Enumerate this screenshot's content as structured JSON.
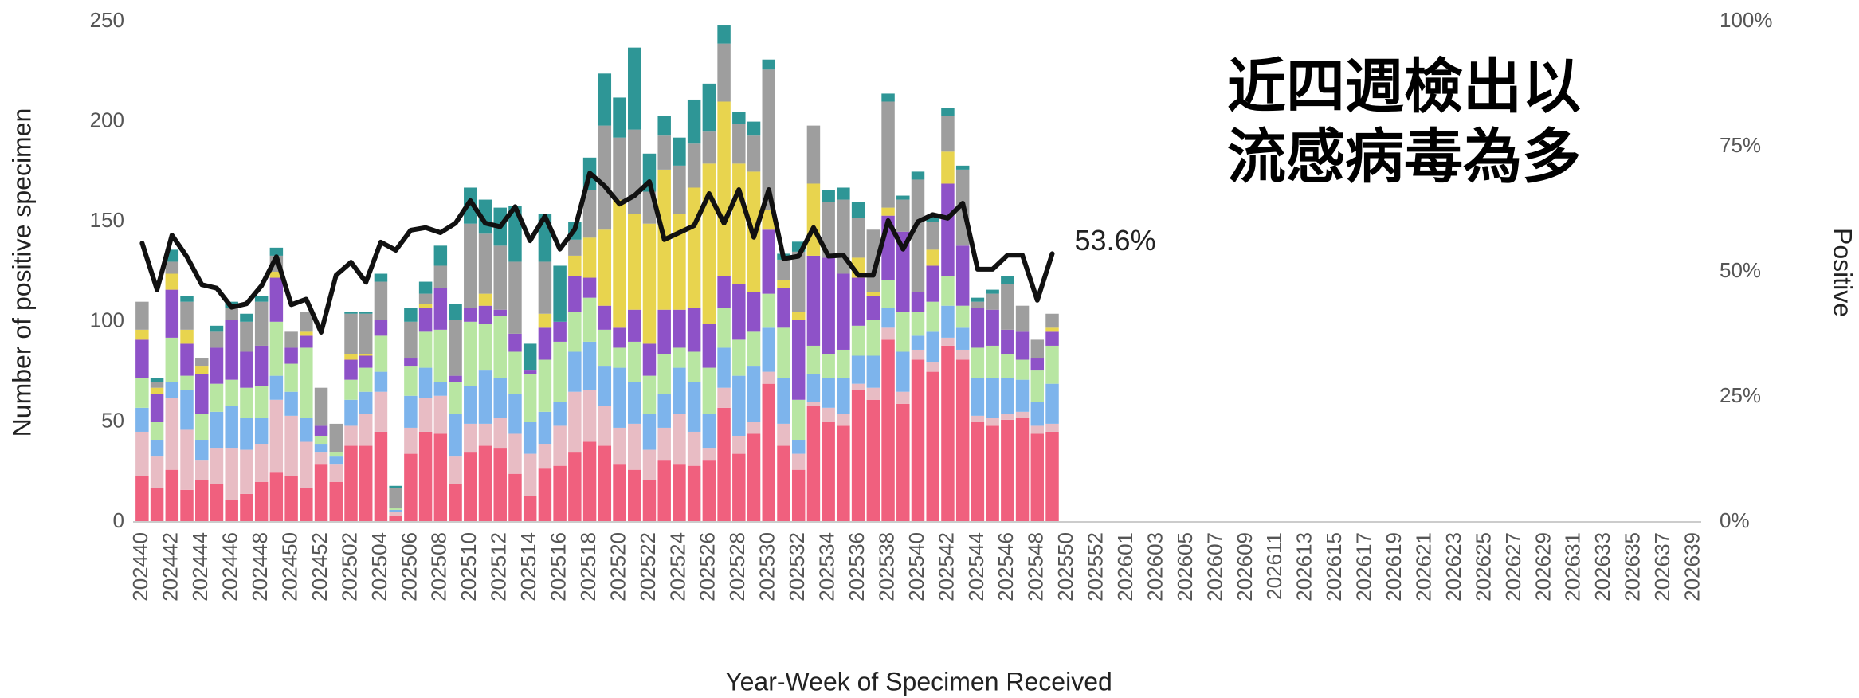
{
  "chart_data": {
    "type": "bar",
    "x_label": "Year-Week of Specimen Received",
    "y_label": "Number of positive specimen",
    "y2_label": "Positive",
    "annotations": [
      "近四週檢出以",
      "流感病毒為多"
    ],
    "categories": [
      "202440",
      null,
      "202442",
      null,
      "202444",
      null,
      "202446",
      null,
      "202448",
      null,
      "202450",
      null,
      "202452",
      null,
      "202502",
      null,
      "202504",
      null,
      "202506",
      null,
      "202508",
      null,
      "202510",
      null,
      "202512",
      null,
      "202514",
      null,
      "202516",
      null,
      "202518",
      null,
      "202520",
      null,
      "202522",
      null,
      "202524",
      null,
      "202526",
      null,
      "202528",
      null,
      "202530",
      null,
      "202532",
      null,
      "202534",
      null,
      "202536",
      null,
      "202538",
      null,
      "202540",
      null,
      "202542",
      null,
      "202544",
      null,
      "202546",
      null,
      "202548",
      null,
      "202550",
      null,
      "202552",
      null,
      "202601",
      null,
      "202603",
      null,
      "202605",
      null,
      "202607",
      null,
      "202609",
      null,
      "202611",
      null,
      "202613",
      null,
      "202615",
      null,
      "202617",
      null,
      "202619",
      null,
      "202621",
      null,
      "202623",
      null,
      "202625",
      null,
      "202627",
      null,
      "202629",
      null,
      "202631",
      null,
      "202633",
      null,
      "202635",
      null,
      "202637",
      null,
      "202639"
    ],
    "ylim": [
      0,
      250
    ],
    "yticks": [
      0,
      50,
      100,
      150,
      200,
      250
    ],
    "y2lim": [
      0,
      100
    ],
    "y2ticks": [
      {
        "value": 0,
        "label": "0%"
      },
      {
        "value": 25,
        "label": "25%"
      },
      {
        "value": 50,
        "label": "50%"
      },
      {
        "value": 75,
        "label": "75%"
      },
      {
        "value": 100,
        "label": "100%"
      }
    ],
    "grid": false,
    "series": [
      {
        "color": "#f0607e",
        "values": [
          23,
          17,
          26,
          16,
          21,
          19,
          11,
          14,
          20,
          25,
          23,
          17,
          29,
          20,
          38,
          38,
          45,
          3,
          34,
          45,
          44,
          19,
          35,
          38,
          37,
          24,
          13,
          27,
          28,
          35,
          40,
          38,
          29,
          26,
          21,
          31,
          29,
          28,
          31,
          57,
          34,
          44,
          69,
          38,
          26,
          58,
          50,
          48,
          66,
          61,
          91,
          59,
          81,
          75,
          88,
          81,
          50,
          48,
          51,
          52,
          44,
          45,
          null,
          null,
          null,
          null,
          null,
          null,
          null,
          null,
          null,
          null,
          null,
          null,
          null,
          null,
          null,
          null,
          null,
          null,
          null,
          null,
          null,
          null,
          null,
          null,
          null,
          null,
          null,
          null,
          null,
          null,
          null,
          null,
          null,
          null,
          null,
          null,
          null,
          null,
          null,
          null,
          null,
          null,
          null
        ]
      },
      {
        "color": "#e8bcc4",
        "values": [
          22,
          16,
          36,
          30,
          10,
          18,
          26,
          22,
          19,
          36,
          30,
          23,
          6,
          9,
          10,
          16,
          20,
          2,
          13,
          17,
          19,
          14,
          14,
          11,
          15,
          20,
          21,
          12,
          20,
          30,
          26,
          20,
          18,
          23,
          15,
          16,
          25,
          17,
          6,
          10,
          9,
          6,
          6,
          11,
          8,
          2,
          7,
          6,
          3,
          6,
          6,
          6,
          5,
          5,
          4,
          5,
          3,
          4,
          3,
          3,
          4,
          4,
          null,
          null,
          null,
          null,
          null,
          null,
          null,
          null,
          null,
          null,
          null,
          null,
          null,
          null,
          null,
          null,
          null,
          null,
          null,
          null,
          null,
          null,
          null,
          null,
          null,
          null,
          null,
          null,
          null,
          null,
          null,
          null,
          null,
          null,
          null,
          null,
          null,
          null,
          null,
          null,
          null,
          null,
          null
        ]
      },
      {
        "color": "#7db4ec",
        "values": [
          12,
          8,
          8,
          20,
          10,
          18,
          21,
          16,
          13,
          12,
          12,
          12,
          4,
          4,
          13,
          11,
          10,
          1,
          16,
          15,
          7,
          21,
          19,
          27,
          20,
          20,
          16,
          16,
          12,
          20,
          24,
          20,
          30,
          21,
          18,
          17,
          23,
          25,
          17,
          20,
          30,
          28,
          22,
          23,
          7,
          14,
          15,
          18,
          14,
          16,
          10,
          20,
          7,
          15,
          16,
          11,
          19,
          20,
          18,
          16,
          12,
          20,
          null,
          null,
          null,
          null,
          null,
          null,
          null,
          null,
          null,
          null,
          null,
          null,
          null,
          null,
          null,
          null,
          null,
          null,
          null,
          null,
          null,
          null,
          null,
          null,
          null,
          null,
          null,
          null,
          null,
          null,
          null,
          null,
          null,
          null,
          null,
          null,
          null,
          null,
          null,
          null,
          null,
          null,
          null
        ]
      },
      {
        "color": "#b8e6a2",
        "values": [
          15,
          9,
          22,
          7,
          13,
          14,
          13,
          15,
          16,
          27,
          14,
          35,
          4,
          2,
          10,
          12,
          18,
          1,
          15,
          18,
          26,
          16,
          32,
          23,
          31,
          21,
          24,
          26,
          30,
          20,
          22,
          18,
          10,
          20,
          19,
          20,
          10,
          15,
          23,
          20,
          18,
          17,
          17,
          25,
          20,
          14,
          12,
          14,
          15,
          18,
          14,
          20,
          12,
          15,
          15,
          11,
          15,
          16,
          12,
          10,
          16,
          19,
          null,
          null,
          null,
          null,
          null,
          null,
          null,
          null,
          null,
          null,
          null,
          null,
          null,
          null,
          null,
          null,
          null,
          null,
          null,
          null,
          null,
          null,
          null,
          null,
          null,
          null,
          null,
          null,
          null,
          null,
          null,
          null,
          null,
          null,
          null,
          null,
          null,
          null,
          null,
          null,
          null,
          null,
          null
        ]
      },
      {
        "color": "#8e52c8",
        "values": [
          19,
          14,
          24,
          16,
          20,
          18,
          30,
          18,
          20,
          22,
          8,
          6,
          5,
          0,
          10,
          6,
          8,
          0,
          4,
          12,
          21,
          3,
          7,
          9,
          3,
          9,
          2,
          16,
          10,
          18,
          10,
          12,
          10,
          16,
          16,
          22,
          19,
          22,
          22,
          16,
          28,
          20,
          32,
          20,
          40,
          45,
          48,
          38,
          24,
          12,
          32,
          40,
          10,
          18,
          46,
          30,
          20,
          18,
          12,
          14,
          6,
          7,
          null,
          null,
          null,
          null,
          null,
          null,
          null,
          null,
          null,
          null,
          null,
          null,
          null,
          null,
          null,
          null,
          null,
          null,
          null,
          null,
          null,
          null,
          null,
          null,
          null,
          null,
          null,
          null,
          null,
          null,
          null,
          null,
          null,
          null,
          null,
          null,
          null,
          null,
          null,
          null,
          null,
          null,
          null
        ]
      },
      {
        "color": "#e8d44e",
        "values": [
          5,
          3,
          8,
          7,
          4,
          0,
          0,
          0,
          0,
          3,
          0,
          2,
          0,
          0,
          3,
          1,
          0,
          0,
          0,
          2,
          0,
          0,
          0,
          6,
          0,
          0,
          0,
          7,
          0,
          10,
          20,
          38,
          64,
          48,
          60,
          70,
          48,
          60,
          80,
          87,
          60,
          60,
          10,
          4,
          4,
          36,
          0,
          0,
          10,
          2,
          4,
          0,
          0,
          8,
          16,
          0,
          0,
          0,
          0,
          0,
          0,
          2,
          null,
          null,
          null,
          null,
          null,
          null,
          null,
          null,
          null,
          null,
          null,
          null,
          null,
          null,
          null,
          null,
          null,
          null,
          null,
          null,
          null,
          null,
          null,
          null,
          null,
          null,
          null,
          null,
          null,
          null,
          null,
          null,
          null,
          null,
          null,
          null,
          null,
          null,
          null,
          null,
          null,
          null,
          null
        ]
      },
      {
        "color": "#9e9e9e",
        "values": [
          14,
          3,
          6,
          14,
          4,
          8,
          6,
          15,
          22,
          8,
          8,
          10,
          19,
          14,
          20,
          20,
          19,
          10,
          18,
          5,
          11,
          28,
          42,
          30,
          32,
          36,
          0,
          26,
          0,
          8,
          24,
          52,
          31,
          42,
          16,
          17,
          24,
          22,
          16,
          29,
          20,
          18,
          70,
          10,
          30,
          29,
          28,
          37,
          20,
          31,
          53,
          16,
          56,
          14,
          18,
          38,
          3,
          8,
          23,
          13,
          9,
          7,
          null,
          null,
          null,
          null,
          null,
          null,
          null,
          null,
          null,
          null,
          null,
          null,
          null,
          null,
          null,
          null,
          null,
          null,
          null,
          null,
          null,
          null,
          null,
          null,
          null,
          null,
          null,
          null,
          null,
          null,
          null,
          null,
          null,
          null,
          null,
          null,
          null,
          null,
          null,
          null,
          null,
          null,
          null
        ]
      },
      {
        "color": "#2e9696",
        "values": [
          0,
          2,
          6,
          3,
          0,
          3,
          3,
          4,
          3,
          4,
          0,
          0,
          0,
          0,
          1,
          1,
          4,
          1,
          7,
          6,
          10,
          8,
          18,
          17,
          19,
          28,
          13,
          24,
          28,
          9,
          16,
          26,
          20,
          41,
          19,
          10,
          14,
          22,
          24,
          9,
          6,
          7,
          5,
          3,
          5,
          0,
          6,
          6,
          8,
          0,
          4,
          2,
          4,
          3,
          4,
          2,
          2,
          2,
          4,
          0,
          0,
          0,
          null,
          null,
          null,
          null,
          null,
          null,
          null,
          null,
          null,
          null,
          null,
          null,
          null,
          null,
          null,
          null,
          null,
          null,
          null,
          null,
          null,
          null,
          null,
          null,
          null,
          null,
          null,
          null,
          null,
          null,
          null,
          null,
          null,
          null,
          null,
          null,
          null,
          null,
          null,
          null,
          null,
          null,
          null
        ]
      },
      {
        "type": "line",
        "axis": "y2",
        "color": "#111111",
        "values": [
          55.7,
          46.4,
          57.3,
          53,
          47.4,
          46.7,
          42.9,
          43.6,
          47.2,
          53,
          43.4,
          44.5,
          37.9,
          49.3,
          51.9,
          47.9,
          55.9,
          54.3,
          58.3,
          58.8,
          57.8,
          59.7,
          64.2,
          59.7,
          59,
          63,
          56.2,
          61.1,
          54.5,
          58.5,
          69.7,
          67.1,
          63.5,
          65.2,
          68,
          56.4,
          57.8,
          59.2,
          65.6,
          59.7,
          66.4,
          56.9,
          66.4,
          52.6,
          53.1,
          58.8,
          53.1,
          53.3,
          49.3,
          49.3,
          60.2,
          54.5,
          60,
          61.4,
          60.7,
          63.7,
          50.5,
          50.5,
          53.3,
          53.3,
          44.3,
          53.6,
          null,
          null,
          null,
          null,
          null,
          null,
          null,
          null,
          null,
          null,
          null,
          null,
          null,
          null,
          null,
          null,
          null,
          null,
          null,
          null,
          null,
          null,
          null,
          null,
          null,
          null,
          null,
          null,
          null,
          null,
          null,
          null,
          null,
          null,
          null,
          null,
          null,
          null,
          null,
          null,
          null,
          null,
          null
        ],
        "value_labels": [
          null,
          null,
          null,
          null,
          null,
          null,
          null,
          null,
          null,
          null,
          null,
          null,
          null,
          null,
          null,
          null,
          null,
          null,
          null,
          null,
          null,
          null,
          null,
          null,
          null,
          null,
          null,
          null,
          null,
          null,
          null,
          null,
          null,
          null,
          null,
          null,
          null,
          null,
          null,
          null,
          null,
          null,
          null,
          null,
          null,
          null,
          null,
          null,
          null,
          null,
          null,
          null,
          null,
          null,
          null,
          null,
          null,
          null,
          null,
          null,
          null,
          "53.6%",
          null,
          null,
          null,
          null,
          null,
          null,
          null,
          null,
          null,
          null,
          null,
          null,
          null,
          null,
          null,
          null,
          null,
          null,
          null,
          null,
          null,
          null,
          null,
          null,
          null,
          null,
          null,
          null,
          null,
          null,
          null,
          null,
          null,
          null,
          null,
          null,
          null,
          null,
          null,
          null,
          null,
          null,
          null
        ]
      }
    ]
  }
}
